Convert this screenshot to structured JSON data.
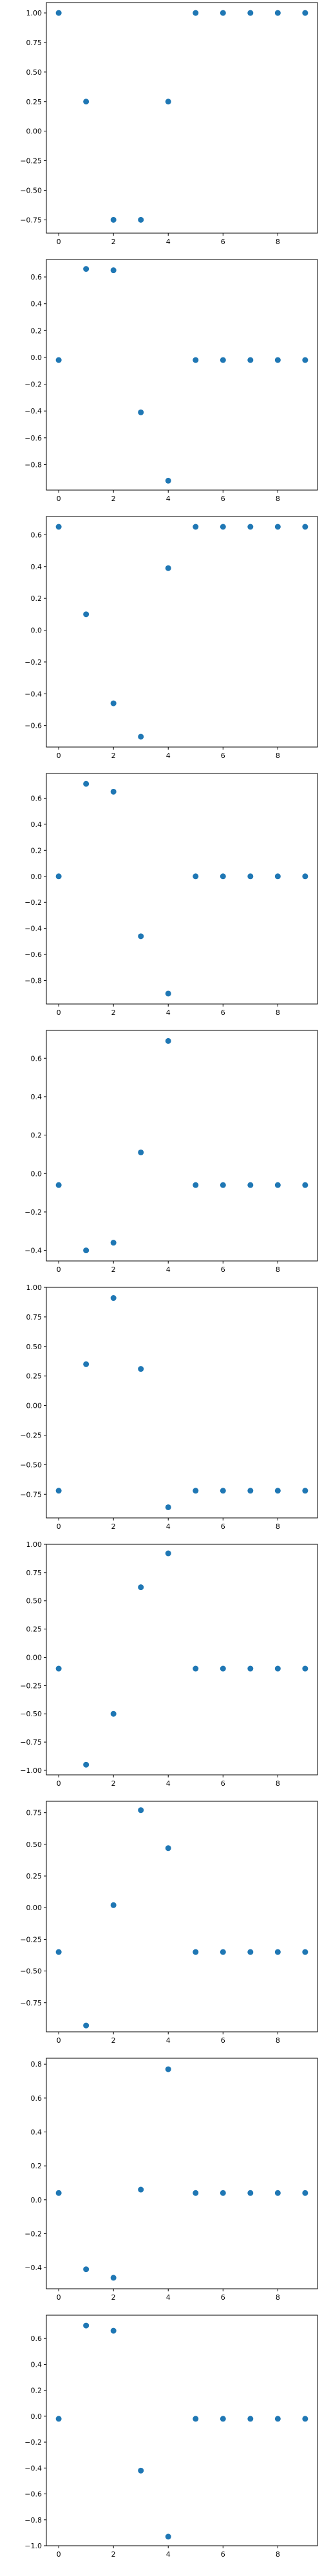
{
  "chart_data": [
    {
      "type": "scatter",
      "x": [
        0,
        1,
        2,
        3,
        4,
        5,
        6,
        7,
        8,
        9
      ],
      "y": [
        1.0,
        0.25,
        -0.75,
        -0.75,
        0.25,
        1.0,
        1.0,
        1.0,
        1.0,
        1.0
      ],
      "xlim": [
        -0.45,
        9.45
      ],
      "ylim": [
        -0.8625,
        1.0875
      ],
      "xticks": [
        0,
        2,
        4,
        6,
        8
      ],
      "yticks": [
        -0.75,
        -0.5,
        -0.25,
        0.0,
        0.25,
        0.5,
        0.75,
        1.0
      ],
      "ytick_labels": [
        "−0.75",
        "−0.50",
        "−0.25",
        "0.00",
        "0.25",
        "0.50",
        "0.75",
        "1.00"
      ]
    },
    {
      "type": "scatter",
      "x": [
        0,
        1,
        2,
        3,
        4,
        5,
        6,
        7,
        8,
        9
      ],
      "y": [
        -0.02,
        0.66,
        0.65,
        -0.41,
        -0.92,
        -0.02,
        -0.02,
        -0.02,
        -0.02,
        -0.02
      ],
      "xlim": [
        -0.45,
        9.45
      ],
      "ylim": [
        -0.99,
        0.73
      ],
      "xticks": [
        0,
        2,
        4,
        6,
        8
      ],
      "yticks": [
        -0.8,
        -0.6,
        -0.4,
        -0.2,
        0.0,
        0.2,
        0.4,
        0.6
      ],
      "ytick_labels": [
        "−0.8",
        "−0.6",
        "−0.4",
        "−0.2",
        "0.0",
        "0.2",
        "0.4",
        "0.6"
      ]
    },
    {
      "type": "scatter",
      "x": [
        0,
        1,
        2,
        3,
        4,
        5,
        6,
        7,
        8,
        9
      ],
      "y": [
        0.65,
        0.1,
        -0.46,
        -0.67,
        0.39,
        0.65,
        0.65,
        0.65,
        0.65,
        0.65
      ],
      "xlim": [
        -0.45,
        9.45
      ],
      "ylim": [
        -0.735,
        0.715
      ],
      "xticks": [
        0,
        2,
        4,
        6,
        8
      ],
      "yticks": [
        -0.6,
        -0.4,
        -0.2,
        0.0,
        0.2,
        0.4,
        0.6
      ],
      "ytick_labels": [
        "−0.6",
        "−0.4",
        "−0.2",
        "0.0",
        "0.2",
        "0.4",
        "0.6"
      ]
    },
    {
      "type": "scatter",
      "x": [
        0,
        1,
        2,
        3,
        4,
        5,
        6,
        7,
        8,
        9
      ],
      "y": [
        0.0,
        0.71,
        0.65,
        -0.46,
        -0.9,
        0.0,
        0.0,
        0.0,
        0.0,
        0.0
      ],
      "xlim": [
        -0.45,
        9.45
      ],
      "ylim": [
        -0.98,
        0.79
      ],
      "xticks": [
        0,
        2,
        4,
        6,
        8
      ],
      "yticks": [
        -0.8,
        -0.6,
        -0.4,
        -0.2,
        0.0,
        0.2,
        0.4,
        0.6
      ],
      "ytick_labels": [
        "−0.8",
        "−0.6",
        "−0.4",
        "−0.2",
        "0.0",
        "0.2",
        "0.4",
        "0.6"
      ]
    },
    {
      "type": "scatter",
      "x": [
        0,
        1,
        2,
        3,
        4,
        5,
        6,
        7,
        8,
        9
      ],
      "y": [
        -0.06,
        -0.4,
        -0.36,
        0.11,
        0.69,
        -0.06,
        -0.06,
        -0.06,
        -0.06,
        -0.06
      ],
      "xlim": [
        -0.45,
        9.45
      ],
      "ylim": [
        -0.455,
        0.745
      ],
      "xticks": [
        0,
        2,
        4,
        6,
        8
      ],
      "yticks": [
        -0.4,
        -0.2,
        0.0,
        0.2,
        0.4,
        0.6
      ],
      "ytick_labels": [
        "−0.4",
        "−0.2",
        "0.0",
        "0.2",
        "0.4",
        "0.6"
      ]
    },
    {
      "type": "scatter",
      "x": [
        0,
        1,
        2,
        3,
        4,
        5,
        6,
        7,
        8,
        9
      ],
      "y": [
        -0.72,
        0.35,
        0.91,
        0.31,
        -0.86,
        -0.72,
        -0.72,
        -0.72,
        -0.72,
        -0.72
      ],
      "xlim": [
        -0.45,
        9.45
      ],
      "ylim": [
        -0.95,
        1.0
      ],
      "xticks": [
        0,
        2,
        4,
        6,
        8
      ],
      "yticks": [
        -0.75,
        -0.5,
        -0.25,
        0.0,
        0.25,
        0.5,
        0.75,
        1.0
      ],
      "ytick_labels": [
        "−0.75",
        "−0.50",
        "−0.25",
        "0.00",
        "0.25",
        "0.50",
        "0.75",
        "1.00"
      ]
    },
    {
      "type": "scatter",
      "x": [
        0,
        1,
        2,
        3,
        4,
        5,
        6,
        7,
        8,
        9
      ],
      "y": [
        -0.1,
        -0.95,
        -0.5,
        0.62,
        0.92,
        -0.1,
        -0.1,
        -0.1,
        -0.1,
        -0.1
      ],
      "xlim": [
        -0.45,
        9.45
      ],
      "ylim": [
        -1.04,
        1.0
      ],
      "xticks": [
        0,
        2,
        4,
        6,
        8
      ],
      "yticks": [
        -1.0,
        -0.75,
        -0.5,
        -0.25,
        0.0,
        0.25,
        0.5,
        0.75,
        1.0
      ],
      "ytick_labels": [
        "−1.00",
        "−0.75",
        "−0.50",
        "−0.25",
        "0.00",
        "0.25",
        "0.50",
        "0.75",
        "1.00"
      ]
    },
    {
      "type": "scatter",
      "x": [
        0,
        1,
        2,
        3,
        4,
        5,
        6,
        7,
        8,
        9
      ],
      "y": [
        -0.35,
        -0.93,
        0.02,
        0.77,
        0.47,
        -0.35,
        -0.35,
        -0.35,
        -0.35,
        -0.35
      ],
      "xlim": [
        -0.45,
        9.45
      ],
      "ylim": [
        -0.98,
        0.84
      ],
      "xticks": [
        0,
        2,
        4,
        6,
        8
      ],
      "yticks": [
        -0.75,
        -0.5,
        -0.25,
        0.0,
        0.25,
        0.5,
        0.75
      ],
      "ytick_labels": [
        "−0.75",
        "−0.50",
        "−0.25",
        "0.00",
        "0.25",
        "0.50",
        "0.75"
      ]
    },
    {
      "type": "scatter",
      "x": [
        0,
        1,
        2,
        3,
        4,
        5,
        6,
        7,
        8,
        9
      ],
      "y": [
        0.04,
        -0.41,
        -0.46,
        0.06,
        0.77,
        0.04,
        0.04,
        0.04,
        0.04,
        0.04
      ],
      "xlim": [
        -0.45,
        9.45
      ],
      "ylim": [
        -0.525,
        0.835
      ],
      "xticks": [
        0,
        2,
        4,
        6,
        8
      ],
      "yticks": [
        -0.4,
        -0.2,
        0.0,
        0.2,
        0.4,
        0.6,
        0.8
      ],
      "ytick_labels": [
        "−0.4",
        "−0.2",
        "0.0",
        "0.2",
        "0.4",
        "0.6",
        "0.8"
      ]
    },
    {
      "type": "scatter",
      "x": [
        0,
        1,
        2,
        3,
        4,
        5,
        6,
        7,
        8,
        9
      ],
      "y": [
        -0.02,
        0.7,
        0.66,
        -0.42,
        -0.93,
        -0.02,
        -0.02,
        -0.02,
        -0.02,
        -0.02
      ],
      "xlim": [
        -0.45,
        9.45
      ],
      "ylim": [
        -1.0,
        0.78
      ],
      "xticks": [
        0,
        2,
        4,
        6,
        8
      ],
      "yticks": [
        -1.0,
        -0.8,
        -0.6,
        -0.4,
        -0.2,
        0.0,
        0.2,
        0.4,
        0.6
      ],
      "ytick_labels": [
        "−1.0",
        "−0.8",
        "−0.6",
        "−0.4",
        "−0.2",
        "0.0",
        "0.2",
        "0.4",
        "0.6"
      ]
    }
  ],
  "colors": {
    "marker": "#1f77b4",
    "axes": "#000000",
    "background": "#ffffff"
  }
}
